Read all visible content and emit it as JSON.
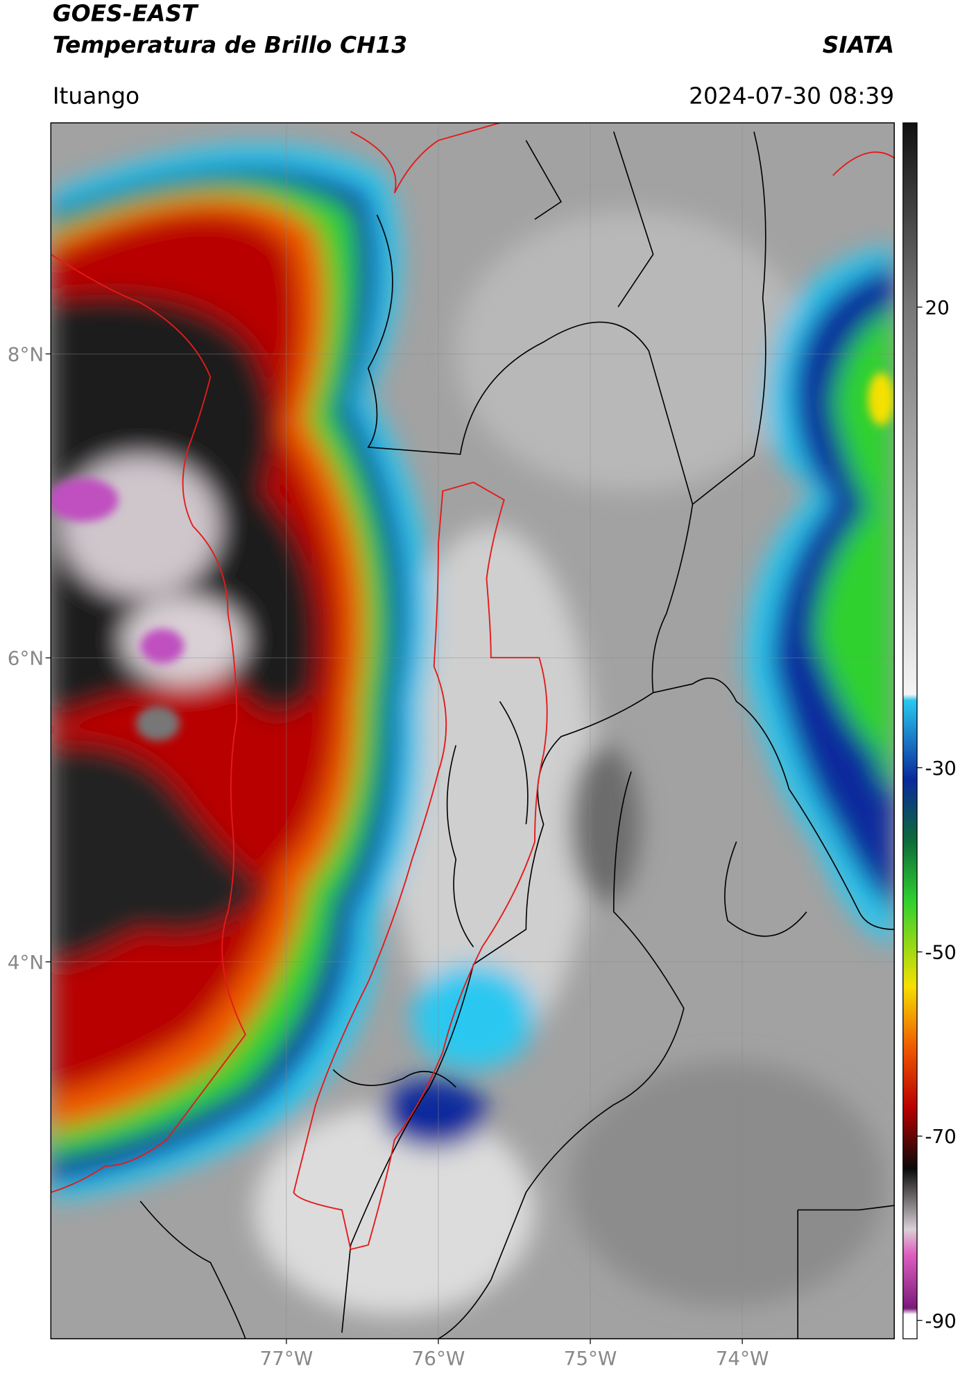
{
  "header": {
    "title": "GOES-EAST",
    "subtitle": "Temperatura de Brillo CH13",
    "source": "SIATA",
    "location": "Ituango",
    "datetime": "2024-07-30 08:39"
  },
  "map": {
    "xlim": [
      -78.55,
      -73.0
    ],
    "ylim": [
      1.52,
      9.52
    ],
    "xticks": [
      {
        "value": -77,
        "label": "77°W"
      },
      {
        "value": -76,
        "label": "76°W"
      },
      {
        "value": -75,
        "label": "75°W"
      },
      {
        "value": -74,
        "label": "74°W"
      }
    ],
    "yticks": [
      {
        "value": 8,
        "label": "8°N"
      },
      {
        "value": 6,
        "label": "6°N"
      },
      {
        "value": 4,
        "label": "4°N"
      }
    ],
    "grid": true
  },
  "colorbar": {
    "lim": [
      -92,
      40
    ],
    "ticks": [
      20,
      -30,
      -50,
      -70,
      -90
    ]
  }
}
